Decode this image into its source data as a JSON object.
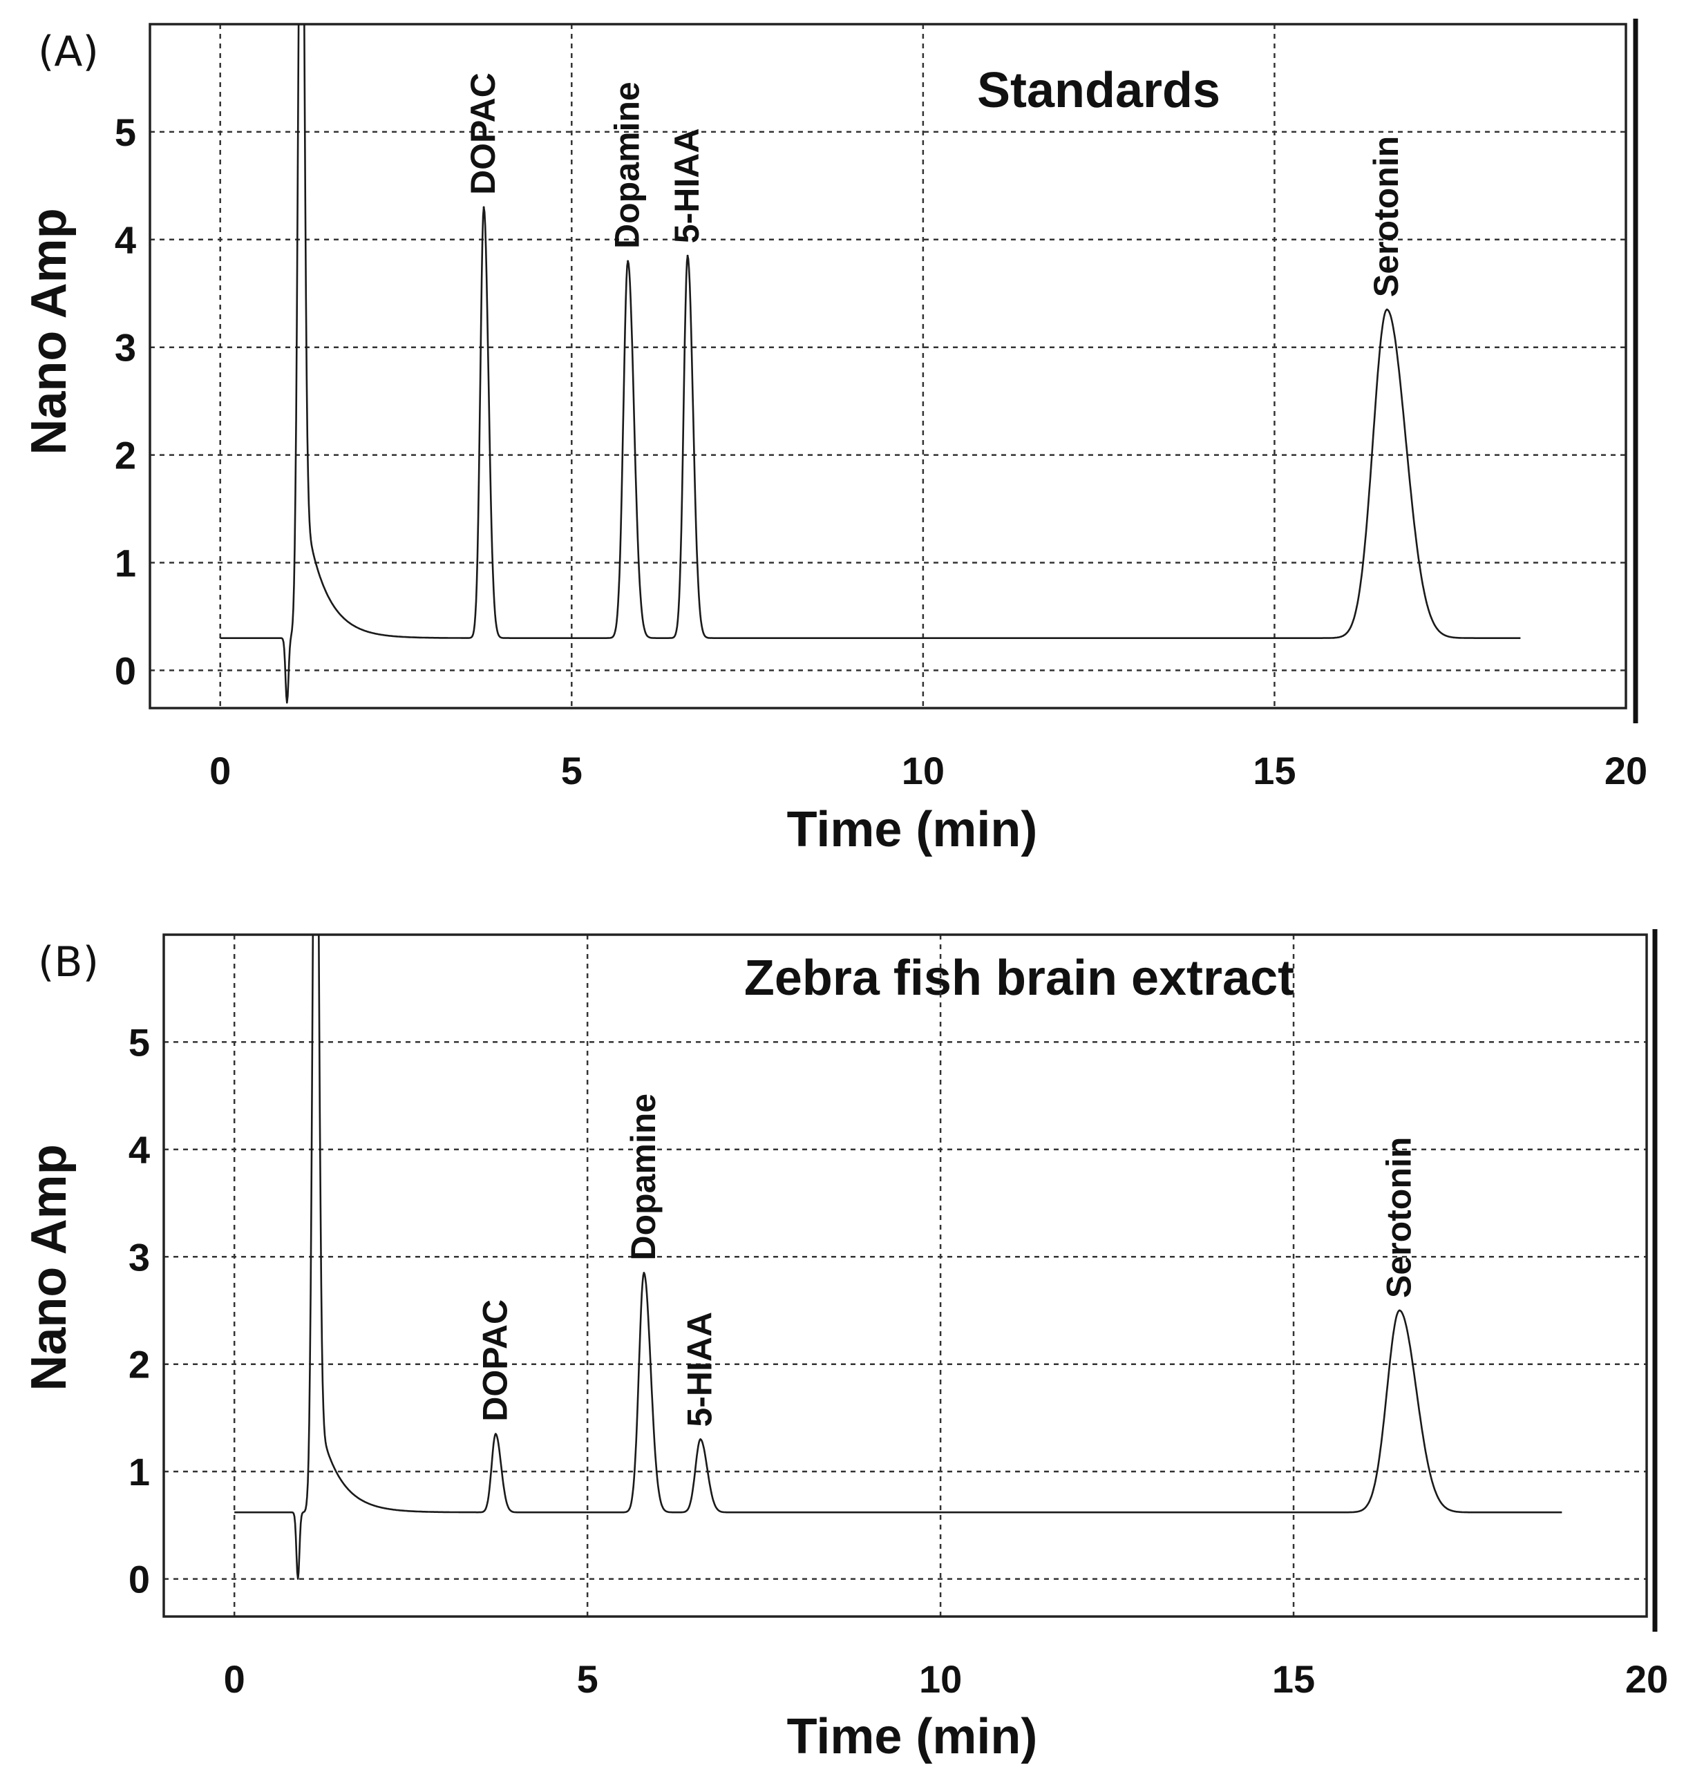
{
  "chart_data": [
    {
      "type": "line",
      "panel_label": "(A)",
      "title": "Standards",
      "xlabel": "Time (min)",
      "ylabel": "Nano Amp",
      "xlim": [
        -1,
        20
      ],
      "ylim": [
        -0.35,
        6
      ],
      "x_ticks": [
        0,
        5,
        10,
        15,
        20
      ],
      "y_ticks": [
        0,
        1,
        2,
        3,
        4,
        5
      ],
      "grid": true,
      "baseline": 0.3,
      "trace_end": 18.5,
      "injection_dip": {
        "x": 0.95,
        "y": -0.3
      },
      "solvent_front": {
        "x": 1.15,
        "height": 8.0,
        "width": 0.06,
        "tail_amp": 1.4,
        "tail_decay": 0.3
      },
      "peaks": [
        {
          "name": "DOPAC",
          "x": 3.75,
          "y": 4.3,
          "width": 0.07
        },
        {
          "name": "Dopamine",
          "x": 5.8,
          "y": 3.8,
          "width": 0.09
        },
        {
          "name": "5-HIAA",
          "x": 6.65,
          "y": 3.85,
          "width": 0.08
        },
        {
          "name": "Serotonin",
          "x": 16.6,
          "y": 3.35,
          "width": 0.28
        }
      ]
    },
    {
      "type": "line",
      "panel_label": "(B)",
      "title": "Zebra fish brain extract",
      "xlabel": "Time (min)",
      "ylabel": "Nano Amp",
      "xlim": [
        -1,
        20
      ],
      "ylim": [
        -0.35,
        6
      ],
      "x_ticks": [
        0,
        5,
        10,
        15,
        20
      ],
      "y_ticks": [
        0,
        1,
        2,
        3,
        4,
        5
      ],
      "grid": true,
      "baseline": 0.62,
      "trace_end": 18.8,
      "injection_dip": {
        "x": 0.9,
        "y": 0.0
      },
      "solvent_front": {
        "x": 1.15,
        "height": 8.0,
        "width": 0.06,
        "tail_amp": 1.0,
        "tail_decay": 0.3
      },
      "peaks": [
        {
          "name": "DOPAC",
          "x": 3.7,
          "y": 1.35,
          "width": 0.08
        },
        {
          "name": "Dopamine",
          "x": 5.8,
          "y": 2.85,
          "width": 0.1
        },
        {
          "name": "5-HIAA",
          "x": 6.6,
          "y": 1.3,
          "width": 0.1
        },
        {
          "name": "Serotonin",
          "x": 16.5,
          "y": 2.5,
          "width": 0.25
        }
      ]
    }
  ]
}
